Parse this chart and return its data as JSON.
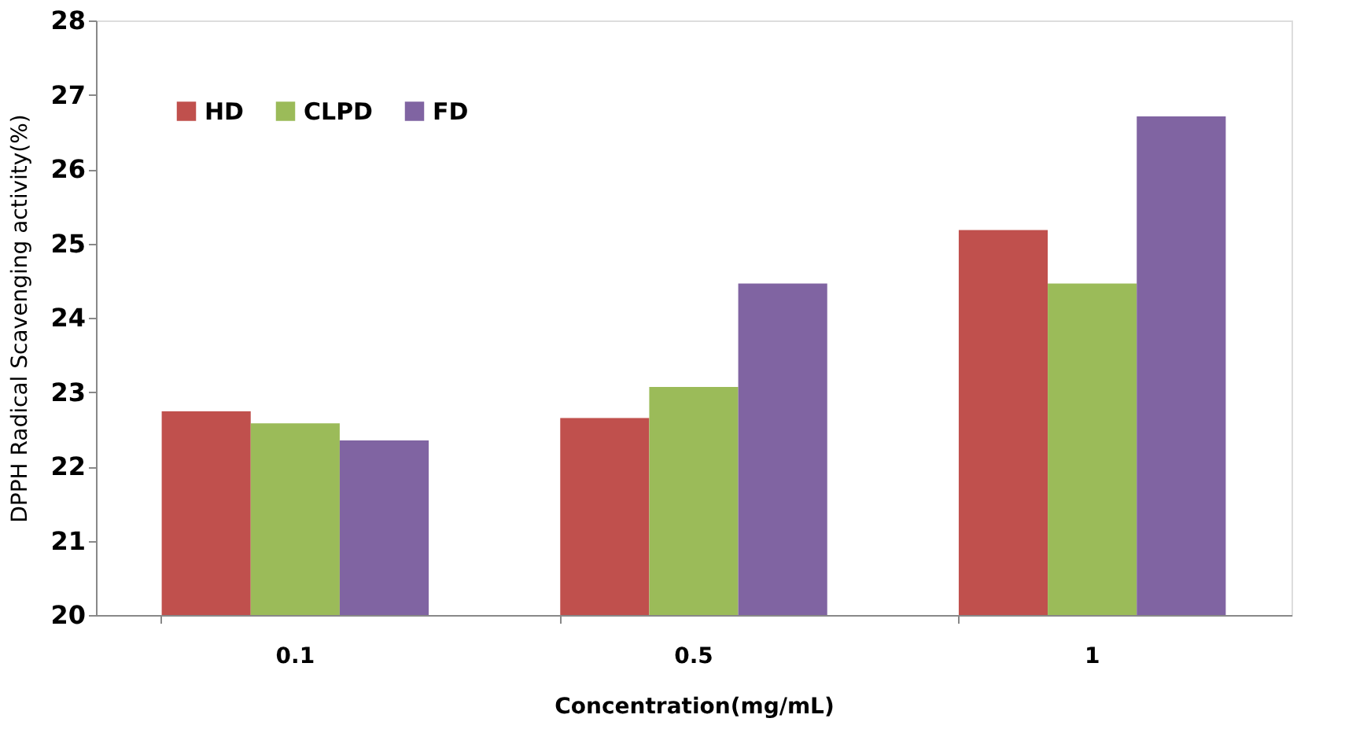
{
  "chart_data": {
    "type": "bar",
    "xlabel": "Concentration(mg/mL)",
    "ylabel": "DPPH Radical Scavenging activity(%)",
    "categories": [
      "0.1",
      "0.5",
      "1"
    ],
    "series": [
      {
        "name": "HD",
        "color": "#c0504d",
        "values": [
          22.74,
          22.65,
          25.18
        ]
      },
      {
        "name": "CLPD",
        "color": "#9bbb59",
        "values": [
          22.58,
          23.07,
          24.46
        ]
      },
      {
        "name": "FD",
        "color": "#8064a2",
        "values": [
          22.35,
          24.46,
          26.71
        ]
      }
    ],
    "ylim": [
      20,
      28
    ],
    "yticks": [
      20,
      21,
      22,
      23,
      24,
      25,
      26,
      27,
      28
    ],
    "grid": false,
    "legend": "top left"
  }
}
